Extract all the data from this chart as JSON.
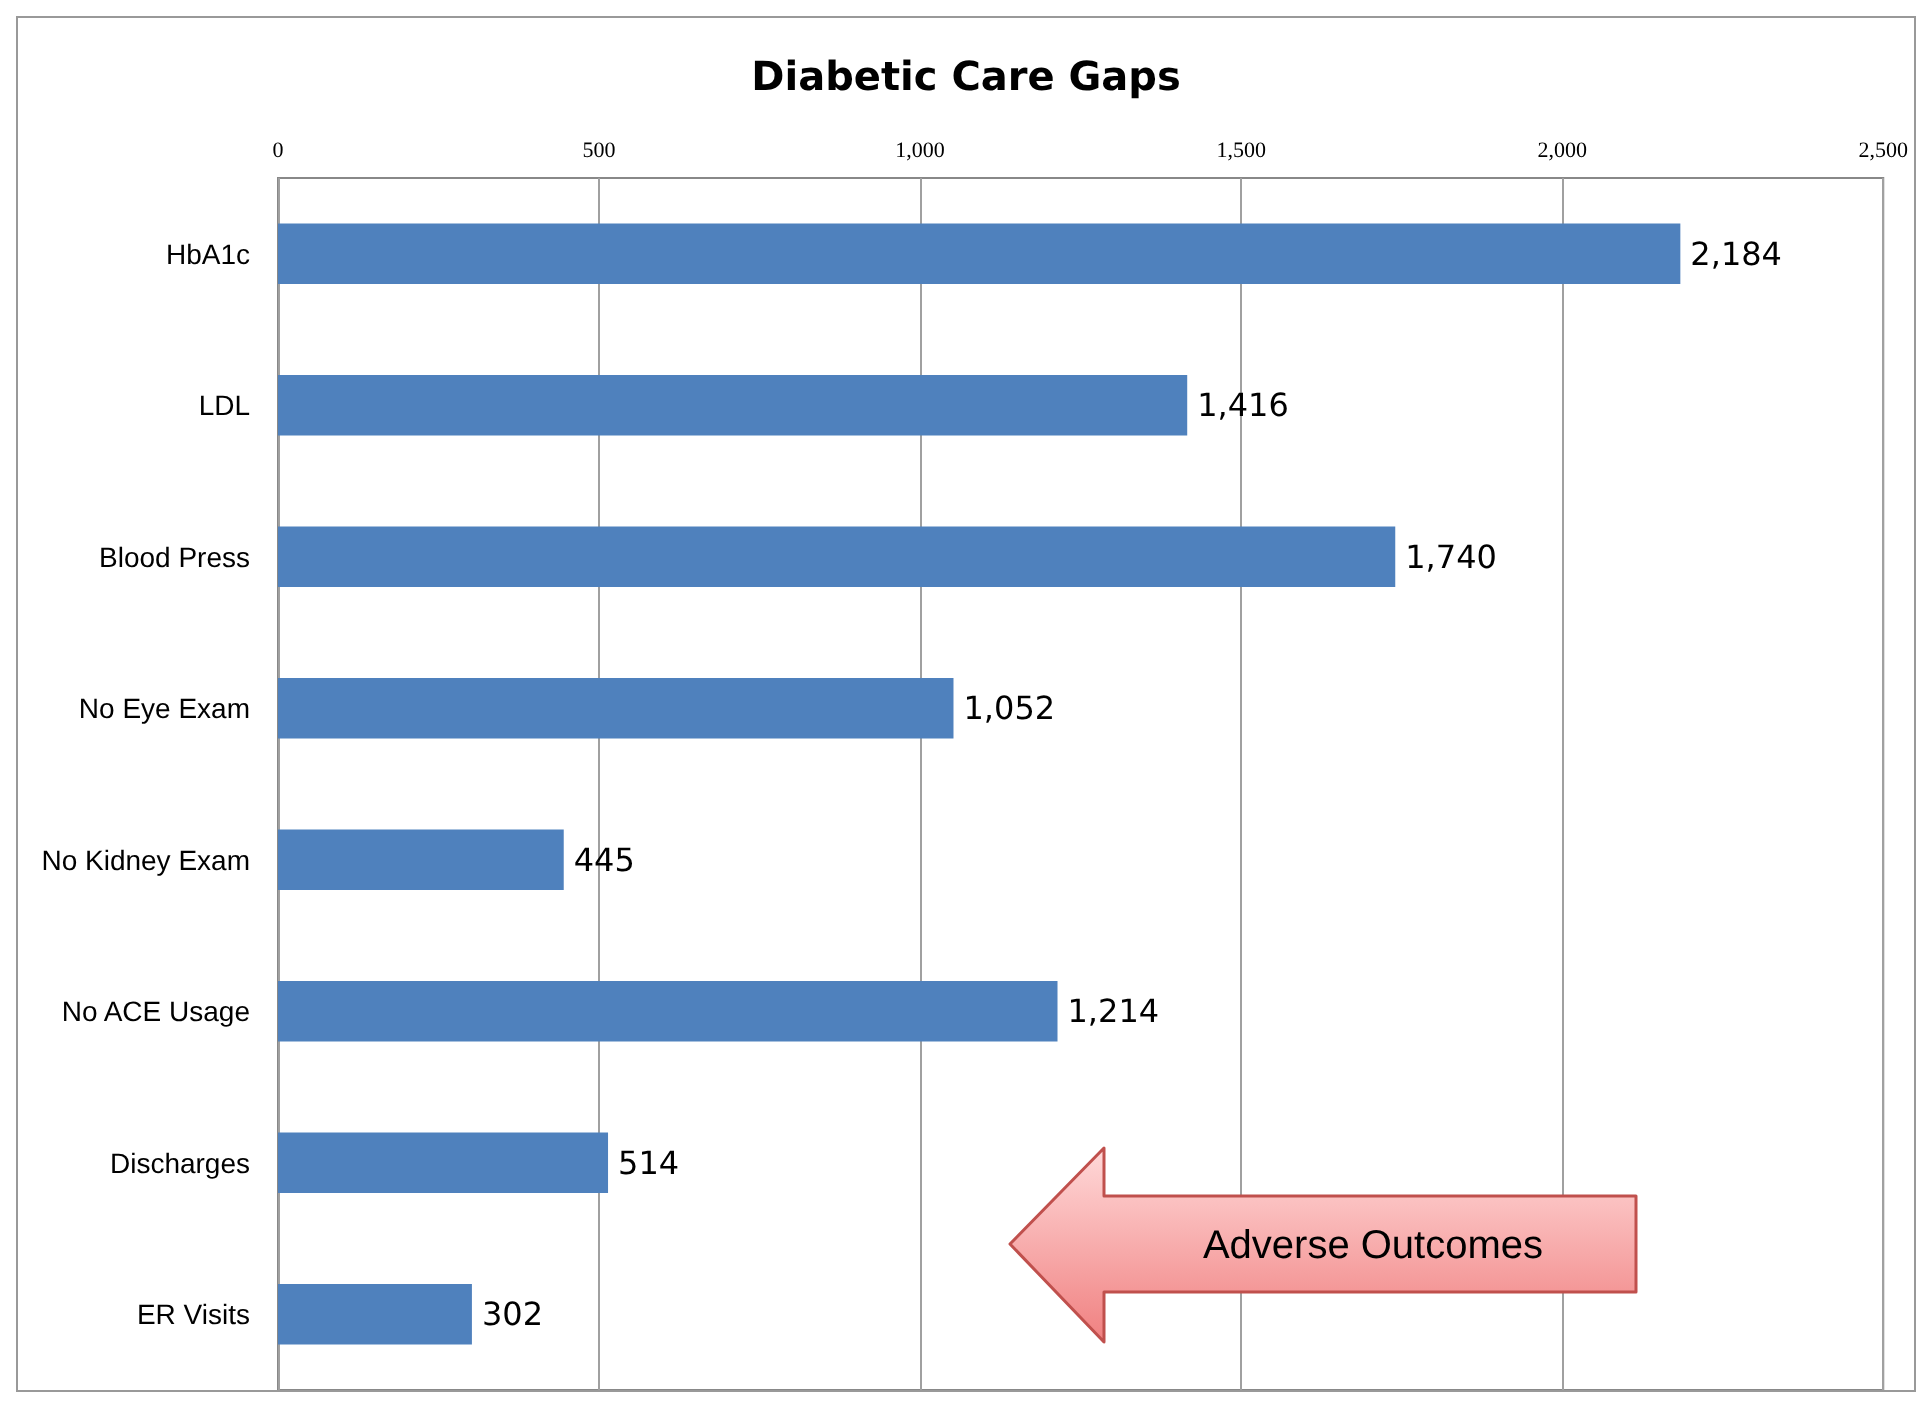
{
  "chart_data": {
    "type": "bar",
    "orientation": "horizontal",
    "title": "Diabetic Care Gaps",
    "categories": [
      "HbA1c",
      "LDL",
      "Blood Press",
      "No Eye Exam",
      "No Kidney Exam",
      "No ACE Usage",
      "Discharges",
      "ER Visits"
    ],
    "values": [
      2184,
      1416,
      1740,
      1052,
      445,
      1214,
      514,
      302
    ],
    "value_labels": [
      "2,184",
      "1,416",
      "1,740",
      "1,052",
      "445",
      "1,214",
      "514",
      "302"
    ],
    "color": "#4f81bd",
    "xlim": [
      0,
      2500
    ],
    "xticks": [
      0,
      500,
      {
        "value": 1000,
        "label": "1,000"
      },
      {
        "value": 1500,
        "label": "1,500"
      },
      {
        "value": 2000,
        "label": "2,000"
      },
      {
        "value": 2500,
        "label": "2,500"
      }
    ],
    "grid": "x",
    "annotations": [
      "Adverse Outcomes"
    ]
  }
}
